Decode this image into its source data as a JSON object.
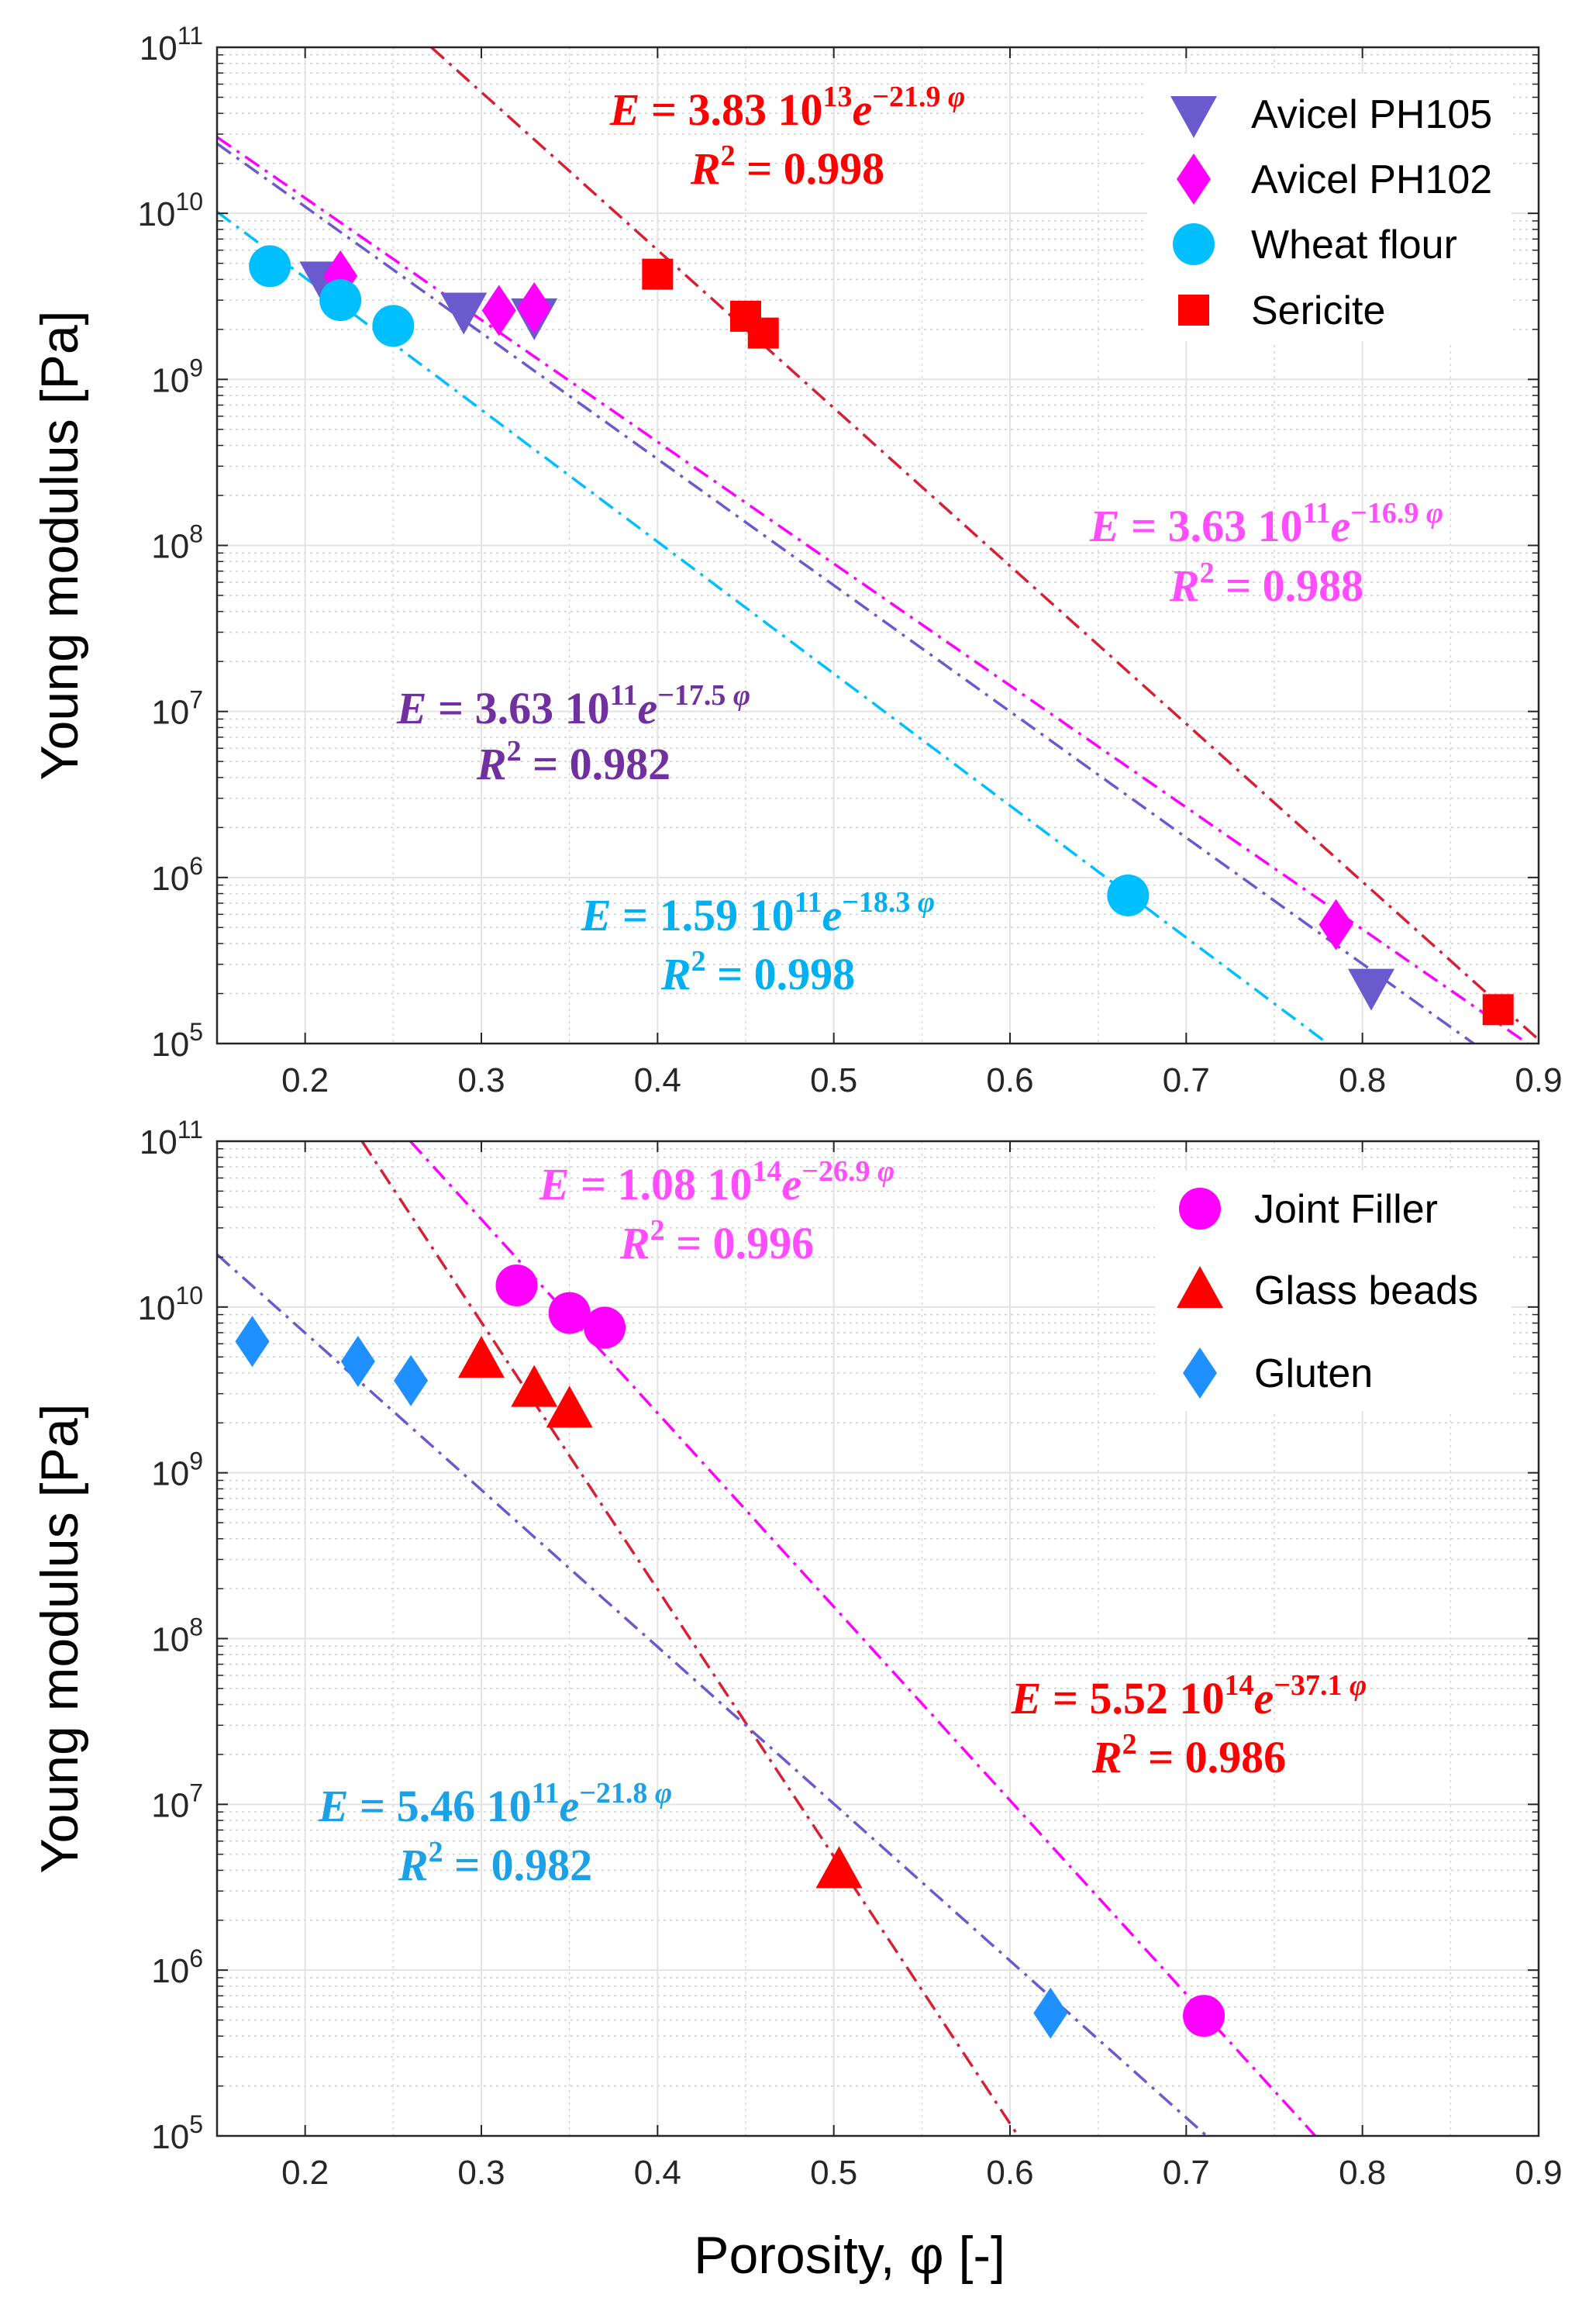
{
  "chart_data": [
    {
      "type": "scatter",
      "title": "",
      "xlabel": "Porosity, φ [-]",
      "ylabel": "Young modulus [Pa]",
      "xlim": [
        0.15,
        0.9
      ],
      "ylim": [
        100000.0,
        100000000000.0
      ],
      "yscale": "log",
      "grid": true,
      "legend_placement": "top-right",
      "x_ticks": [
        "0.2",
        "0.3",
        "0.4",
        "0.5",
        "0.6",
        "0.7",
        "0.8",
        "0.9"
      ],
      "y_ticks": [
        {
          "base": "10",
          "exp": "5"
        },
        {
          "base": "10",
          "exp": "6"
        },
        {
          "base": "10",
          "exp": "7"
        },
        {
          "base": "10",
          "exp": "8"
        },
        {
          "base": "10",
          "exp": "9"
        },
        {
          "base": "10",
          "exp": "10"
        },
        {
          "base": "10",
          "exp": "11"
        }
      ],
      "series": [
        {
          "name": "Avicel PH105",
          "marker": "triangle-down",
          "color": "#6a5acd",
          "x": [
            0.21,
            0.29,
            0.33,
            0.805
          ],
          "y": [
            4000000000.0,
            2600000000.0,
            2400000000.0,
            220000.0
          ]
        },
        {
          "name": "Avicel PH102",
          "marker": "diamond",
          "color": "#ff00ff",
          "x": [
            0.22,
            0.31,
            0.33,
            0.785
          ],
          "y": [
            4200000000.0,
            2600000000.0,
            2700000000.0,
            520000.0
          ]
        },
        {
          "name": "Wheat flour",
          "marker": "circle",
          "color": "#00bfff",
          "x": [
            0.18,
            0.22,
            0.25,
            0.667
          ],
          "y": [
            4800000000.0,
            3000000000.0,
            2100000000.0,
            780000.0
          ]
        },
        {
          "name": "Sericite",
          "marker": "square",
          "color": "#ff0000",
          "x": [
            0.4,
            0.45,
            0.46,
            0.877
          ],
          "y": [
            4300000000.0,
            2400000000.0,
            1900000000.0,
            160000.0
          ]
        }
      ],
      "fits": [
        {
          "A": 38300000000000.0,
          "b": 21.9,
          "line_color": "#d62035",
          "text_color": "#ff0000",
          "coef": "3.83",
          "pow": "10",
          "pow_exp": "13",
          "rate": "−21.9",
          "r2": "0.998"
        },
        {
          "A": 363000000000.0,
          "b": 16.9,
          "line_color": "#ff00ff",
          "text_color": "#ff4dff",
          "coef": "3.63",
          "pow": "10",
          "pow_exp": "11",
          "rate": "−16.9",
          "r2": "0.988"
        },
        {
          "A": 363000000000.0,
          "b": 17.5,
          "line_color": "#6a5acd",
          "text_color": "#7030a0",
          "coef": "3.63",
          "pow": "10",
          "pow_exp": "11",
          "rate": "−17.5",
          "r2": "0.982"
        },
        {
          "A": 159000000000.0,
          "b": 18.3,
          "line_color": "#00bfff",
          "text_color": "#00b0f0",
          "coef": "1.59",
          "pow": "10",
          "pow_exp": "11",
          "rate": "−18.3",
          "r2": "0.998"
        }
      ]
    },
    {
      "type": "scatter",
      "title": "",
      "xlabel": "Porosity, φ [-]",
      "ylabel": "Young modulus [Pa]",
      "xlim": [
        0.15,
        0.9
      ],
      "ylim": [
        100000.0,
        100000000000.0
      ],
      "yscale": "log",
      "grid": true,
      "legend_placement": "top-right",
      "x_ticks": [
        "0.2",
        "0.3",
        "0.4",
        "0.5",
        "0.6",
        "0.7",
        "0.8",
        "0.9"
      ],
      "y_ticks": [
        {
          "base": "10",
          "exp": "5"
        },
        {
          "base": "10",
          "exp": "6"
        },
        {
          "base": "10",
          "exp": "7"
        },
        {
          "base": "10",
          "exp": "8"
        },
        {
          "base": "10",
          "exp": "9"
        },
        {
          "base": "10",
          "exp": "10"
        },
        {
          "base": "10",
          "exp": "11"
        }
      ],
      "series": [
        {
          "name": "Joint Filler",
          "marker": "circle",
          "color": "#ff00ff",
          "x": [
            0.32,
            0.35,
            0.37,
            0.71
          ],
          "y": [
            13500000000.0,
            9200000000.0,
            7500000000.0,
            530000.0
          ]
        },
        {
          "name": "Glass beads",
          "marker": "triangle-up",
          "color": "#ff0000",
          "x": [
            0.3,
            0.33,
            0.35,
            0.503
          ],
          "y": [
            4800000000.0,
            3200000000.0,
            2400000000.0,
            4000000.0
          ]
        },
        {
          "name": "Gluten",
          "marker": "diamond",
          "color": "#1e90ff",
          "x": [
            0.17,
            0.23,
            0.26,
            0.623
          ],
          "y": [
            6200000000.0,
            4700000000.0,
            3600000000.0,
            550000.0
          ]
        }
      ],
      "fits": [
        {
          "A": 108000000000000.0,
          "b": 26.9,
          "line_color": "#ff00ff",
          "text_color": "#ff4dff",
          "coef": "1.08",
          "pow": "10",
          "pow_exp": "14",
          "rate": "−26.9",
          "r2": "0.996"
        },
        {
          "A": 552000000000000.0,
          "b": 37.1,
          "line_color": "#d62035",
          "text_color": "#ff0000",
          "coef": "5.52",
          "pow": "10",
          "pow_exp": "14",
          "rate": "−37.1",
          "r2": "0.986"
        },
        {
          "A": 546000000000.0,
          "b": 21.8,
          "line_color": "#6a5acd",
          "text_color": "#1ca0e6",
          "coef": "5.46",
          "pow": "10",
          "pow_exp": "11",
          "rate": "−21.8",
          "r2": "0.982"
        }
      ]
    }
  ],
  "labels": {
    "E": "E",
    "eq": " = ",
    "e": "e",
    "phi": "φ",
    "R": "R",
    "R2sup": "2"
  }
}
